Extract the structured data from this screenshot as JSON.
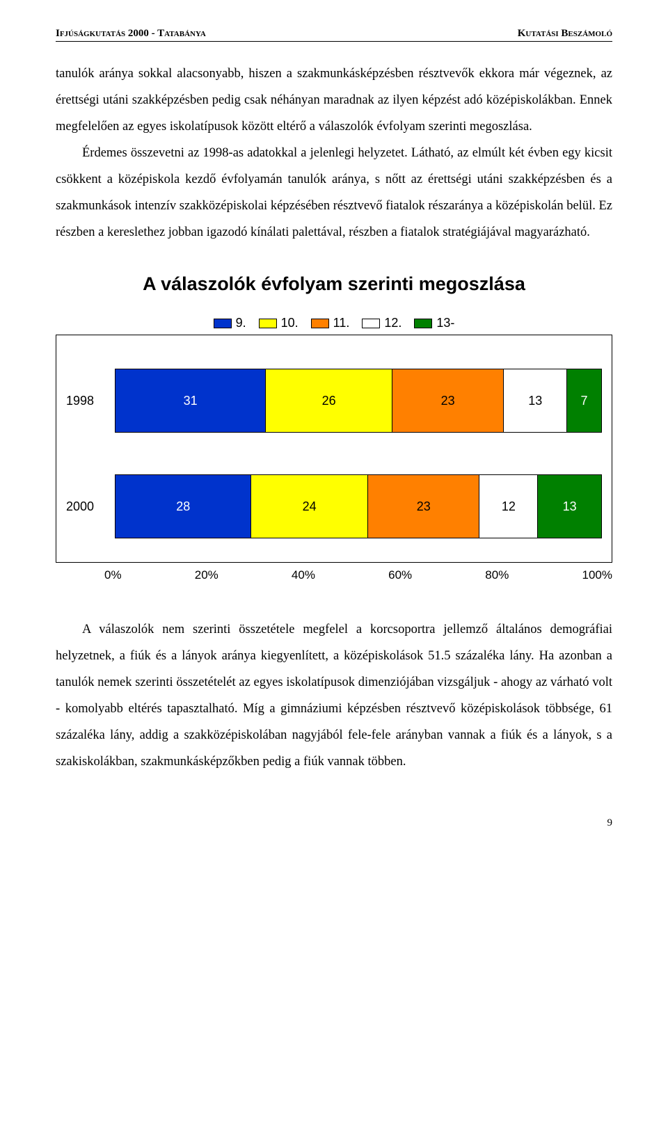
{
  "header": {
    "left": "Ifjúságkutatás 2000 - Tatabánya",
    "right": "Kutatási Beszámoló"
  },
  "para1": "tanulók aránya sokkal alacsonyabb, hiszen a szakmunkásképzésben résztvevők ekkora már végeznek, az érettségi utáni szakképzésben pedig csak néhányan maradnak az ilyen képzést adó középiskolákban. Ennek megfelelően az egyes iskolatípusok között eltérő a válaszolók évfolyam szerinti megoszlása.",
  "para1b": "Érdemes összevetni az 1998-as adatokkal a jelenlegi helyzetet. Látható, az elmúlt két évben egy kicsit csökkent a középiskola kezdő évfolyamán tanulók aránya, s nőtt az érettségi utáni szakképzésben és a szakmunkások intenzív szakközépiskolai képzésében résztvevő fiatalok részaránya a középiskolán belül. Ez részben a kereslethez jobban igazodó kínálati palettával, részben a fiatalok stratégiájával magyarázható.",
  "chart": {
    "title": "A válaszolók évfolyam szerinti megoszlása",
    "legend": [
      {
        "label": "9.",
        "color": "#0033cc"
      },
      {
        "label": "10.",
        "color": "#ffff00"
      },
      {
        "label": "11.",
        "color": "#ff8000"
      },
      {
        "label": "12.",
        "color": "#ffffff"
      },
      {
        "label": "13-",
        "color": "#008000"
      }
    ],
    "rows": [
      {
        "label": "1998",
        "values": [
          31,
          26,
          23,
          13,
          7
        ],
        "textcolors": [
          "#ffffff",
          "#000000",
          "#000000",
          "#000000",
          "#ffffff"
        ]
      },
      {
        "label": "2000",
        "values": [
          28,
          24,
          23,
          12,
          13
        ],
        "textcolors": [
          "#ffffff",
          "#000000",
          "#000000",
          "#000000",
          "#ffffff"
        ]
      }
    ],
    "axis": [
      "0%",
      "20%",
      "40%",
      "60%",
      "80%",
      "100%"
    ]
  },
  "para2": "A válaszolók nem szerinti összetétele megfelel a korcsoportra jellemző általános demográfiai helyzetnek, a fiúk és a lányok aránya kiegyenlített, a középiskolások 51.5 százaléka lány. Ha azonban a tanulók nemek szerinti összetételét az egyes iskolatípusok dimenziójában vizsgáljuk - ahogy az várható volt - komolyabb eltérés tapasztalható. Míg a gimnáziumi képzésben résztvevő középiskolások többsége, 61 százaléka lány, addig a szakközépiskolában nagyjából fele-fele arányban vannak a fiúk és a lányok, s a szakiskolákban, szakmunkásképzőkben pedig a fiúk vannak többen.",
  "pagenum": "9"
}
